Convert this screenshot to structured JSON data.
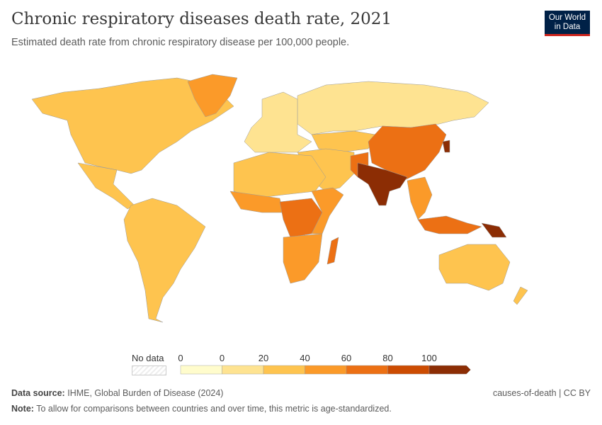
{
  "header": {
    "title": "Chronic respiratory diseases death rate, 2021",
    "subtitle": "Estimated death rate from chronic respiratory disease per 100,000 people.",
    "logo": "Our World in Data"
  },
  "legend": {
    "no_data_label": "No data",
    "ticks": [
      "0",
      "0",
      "20",
      "40",
      "60",
      "80",
      "100"
    ],
    "bins": [
      "#fffccc",
      "#fee391",
      "#fec44f",
      "#fb9a29",
      "#ec7014",
      "#cc4c02",
      "#8c2d04"
    ]
  },
  "footer": {
    "source_label": "Data source:",
    "source": "IHME, Global Burden of Disease (2024)",
    "note_label": "Note:",
    "note": "To allow for comparisons between countries and over time, this metric is age-standardized.",
    "license": "causes-of-death | CC BY"
  }
}
